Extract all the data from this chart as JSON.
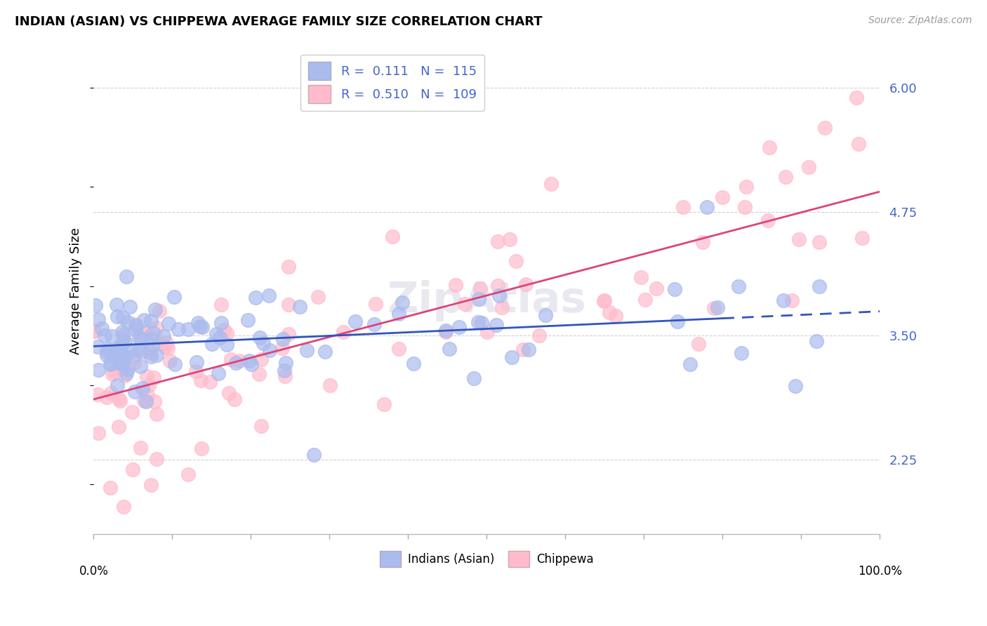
{
  "title": "INDIAN (ASIAN) VS CHIPPEWA AVERAGE FAMILY SIZE CORRELATION CHART",
  "source": "Source: ZipAtlas.com",
  "ylabel": "Average Family Size",
  "ylim": [
    1.5,
    6.4
  ],
  "xlim": [
    0.0,
    100.0
  ],
  "yticks": [
    2.25,
    3.5,
    4.75,
    6.0
  ],
  "yaxis_color": "#4466cc",
  "blue_color": "#aabbee",
  "pink_color": "#ffbbcc",
  "blue_fill_color": "#aabbee",
  "pink_fill_color": "#ffbbcc",
  "blue_line_color": "#3355bb",
  "pink_line_color": "#dd4477",
  "grid_color": "#cccccc",
  "background_color": "#ffffff",
  "blue_R": 0.111,
  "blue_N": 115,
  "pink_R": 0.51,
  "pink_N": 109,
  "seed": 7
}
